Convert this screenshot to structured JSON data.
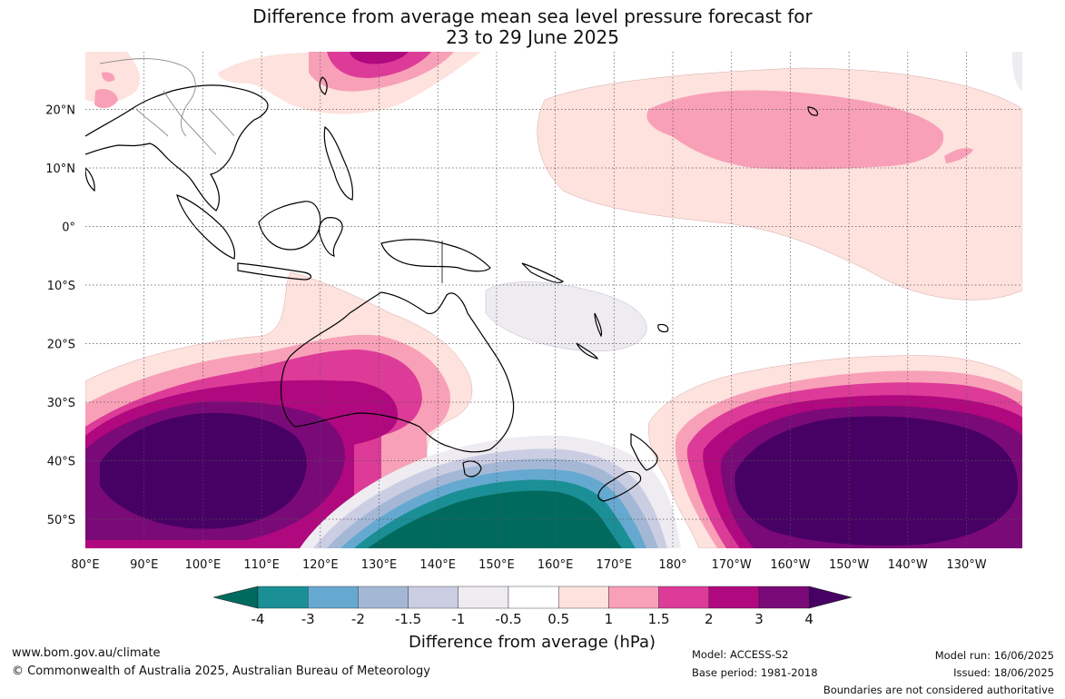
{
  "title": {
    "line1": "Difference from average mean sea level pressure forecast for",
    "line2": "23 to 29 June 2025"
  },
  "axes": {
    "longitude_labels": [
      "80°E",
      "90°E",
      "100°E",
      "110°E",
      "120°E",
      "130°E",
      "140°E",
      "150°E",
      "160°E",
      "170°E",
      "180°",
      "170°W",
      "160°W",
      "150°W",
      "140°W",
      "130°W"
    ],
    "latitude_labels": [
      "20°N",
      "10°N",
      "0°",
      "10°S",
      "20°S",
      "30°S",
      "40°S",
      "50°S"
    ]
  },
  "colorbar": {
    "title": "Difference from average (hPa)",
    "ticks": [
      "-4",
      "-3",
      "-2",
      "-1.5",
      "-1",
      "-0.5",
      "0.5",
      "1",
      "1.5",
      "2",
      "3",
      "4"
    ],
    "colors": [
      "#006a5e",
      "#1a8f96",
      "#66a9d0",
      "#a4b8d6",
      "#cbcde3",
      "#eeebf1",
      "#ffffff",
      "#fde2de",
      "#f8a0b8",
      "#dd3b98",
      "#b0087f",
      "#7a0a78",
      "#470064"
    ]
  },
  "footer": {
    "url": "www.bom.gov.au/climate",
    "copyright": "© Commonwealth of Australia 2025, Australian Bureau of Meteorology",
    "model": "Model: ACCESS-S2",
    "base_period": "Base period: 1981-2018",
    "model_run": "Model run: 16/06/2025",
    "issued": "Issued: 18/06/2025",
    "disclaimer": "Boundaries are not considered authoritative"
  }
}
